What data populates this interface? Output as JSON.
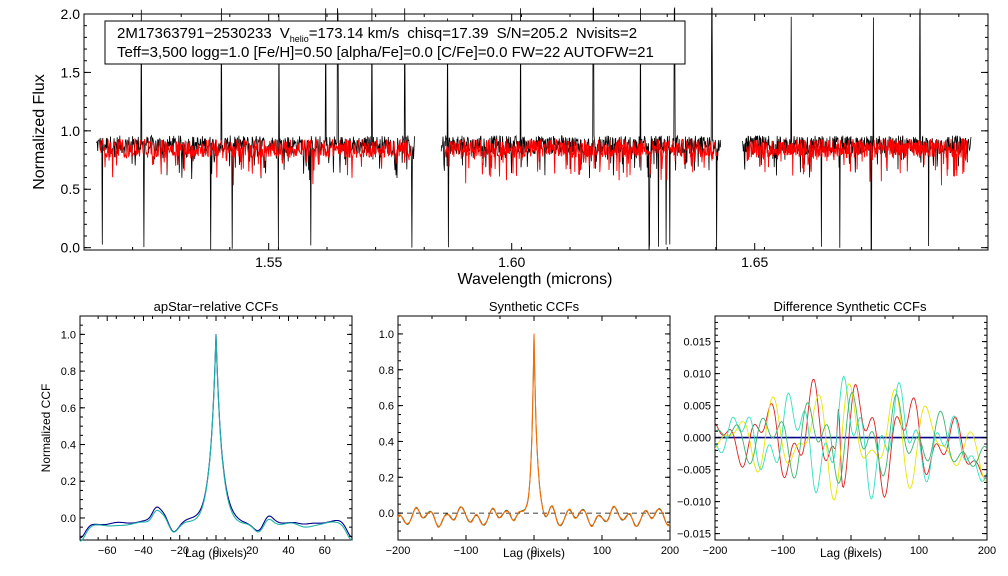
{
  "chart_data": [
    {
      "type": "line",
      "panel": "spectrum",
      "ylabel": "Normalized Flux",
      "xlabel": "Wavelength (microns)",
      "xlim": [
        1.512,
        1.698
      ],
      "ylim": [
        -0.02,
        2.0
      ],
      "xticks": [
        1.55,
        1.6,
        1.65
      ],
      "xtick_labels": [
        "1.55",
        "1.60",
        "1.65"
      ],
      "yticks": [
        0.0,
        0.5,
        1.0,
        1.5,
        2.0
      ],
      "ytick_labels": [
        "0.0",
        "0.5",
        "1.0",
        "1.5",
        "2.0"
      ],
      "annotation": {
        "star": "2M17363791−2530233",
        "vhelio_prefix": "V",
        "vhelio_sub": "helio",
        "vhelio_value": "=173.14 km/s",
        "chisq": "chisq=17.39",
        "snr": "S/N=205.2",
        "nvisits": "Nvisits=2",
        "line2": "Teff=3,500 logg=1.0 [Fe/H]=0.50 [alpha/Fe]=0.0 [C/Fe]=0.0 FW=22 AUTOFW=21"
      },
      "chips": [
        [
          1.5145,
          1.58
        ],
        [
          1.5855,
          1.643
        ],
        [
          1.6475,
          1.6945
        ]
      ],
      "series": [
        {
          "name": "observed",
          "color": "#000000",
          "level": 0.88,
          "noise": 0.1
        },
        {
          "name": "best-fit model",
          "color": "#ff0000",
          "level": 0.85,
          "noise": 0.1
        }
      ],
      "spikes": [
        1.5238,
        1.5403,
        1.5521,
        1.5617,
        1.5642,
        1.5712,
        1.578,
        1.5868,
        1.6018,
        1.6168,
        1.6265,
        1.6335,
        1.6412,
        1.6575,
        1.6675,
        1.6744,
        1.684
      ],
      "dips": [
        1.5158,
        1.5243,
        1.5381,
        1.5425,
        1.552,
        1.5587,
        1.5795,
        1.587,
        1.6283,
        1.6302,
        1.6318,
        1.6325,
        1.6422,
        1.6637,
        1.6675,
        1.674,
        1.6858
      ]
    },
    {
      "type": "line",
      "panel": "ccf-apstar",
      "title": "apStar−relative CCFs",
      "xlabel": "Lag (pixels)",
      "ylabel": "Normalized CCF",
      "xlim": [
        -75,
        75
      ],
      "ylim": [
        -0.12,
        1.1
      ],
      "xticks": [
        -60,
        -40,
        -20,
        0,
        20,
        40,
        60
      ],
      "xtick_labels": [
        "−60",
        "−40",
        "−20",
        "0",
        "20",
        "40",
        "60"
      ],
      "yticks": [
        0.0,
        0.2,
        0.4,
        0.6,
        0.8,
        1.0
      ],
      "ytick_labels": [
        "0.0",
        "0.2",
        "0.4",
        "0.6",
        "0.8",
        "1.0"
      ],
      "peak": 1.0,
      "series": [
        {
          "name": "ccf-1",
          "color": "#00008b"
        },
        {
          "name": "ccf-2",
          "color": "#20b2aa"
        }
      ]
    },
    {
      "type": "line",
      "panel": "ccf-synthetic",
      "title": "Synthetic CCFs",
      "xlabel": "Lag (pixels)",
      "xlim": [
        -200,
        200
      ],
      "ylim": [
        -0.15,
        1.1
      ],
      "xticks": [
        -200,
        -100,
        0,
        100,
        200
      ],
      "xtick_labels": [
        "−200",
        "−100",
        "0",
        "100",
        "200"
      ],
      "yticks": [
        0.0,
        0.2,
        0.4,
        0.6,
        0.8,
        1.0
      ],
      "ytick_labels": [
        "0.0",
        "0.2",
        "0.4",
        "0.6",
        "0.8",
        "1.0"
      ],
      "peak": 1.0,
      "zero_line": 0.0,
      "series": [
        {
          "name": "ccf-1",
          "color": "#556b2f"
        },
        {
          "name": "ccf-2",
          "color": "#ff6a00"
        }
      ]
    },
    {
      "type": "line",
      "panel": "ccf-difference",
      "title": "Difference Synthetic CCFs",
      "xlabel": "Lag (pixels)",
      "xlim": [
        -200,
        200
      ],
      "ylim": [
        -0.016,
        0.019
      ],
      "xticks": [
        -200,
        -100,
        0,
        100,
        200
      ],
      "xtick_labels": [
        "−200",
        "−100",
        "0",
        "100",
        "200"
      ],
      "yticks": [
        -0.015,
        -0.01,
        -0.005,
        0.0,
        0.005,
        0.01,
        0.015
      ],
      "ytick_labels": [
        "−0.015",
        "−0.010",
        "−0.005",
        "0.000",
        "0.005",
        "0.010",
        "0.015"
      ],
      "zero_line": 0.0,
      "series": [
        {
          "name": "diff-zero",
          "color": "#00008b"
        },
        {
          "name": "diff-red",
          "color": "#dd2222"
        },
        {
          "name": "diff-yellow",
          "color": "#e6e600"
        },
        {
          "name": "diff-cyan",
          "color": "#33e0c0"
        },
        {
          "name": "diff-green",
          "color": "#3cb371"
        }
      ]
    }
  ]
}
